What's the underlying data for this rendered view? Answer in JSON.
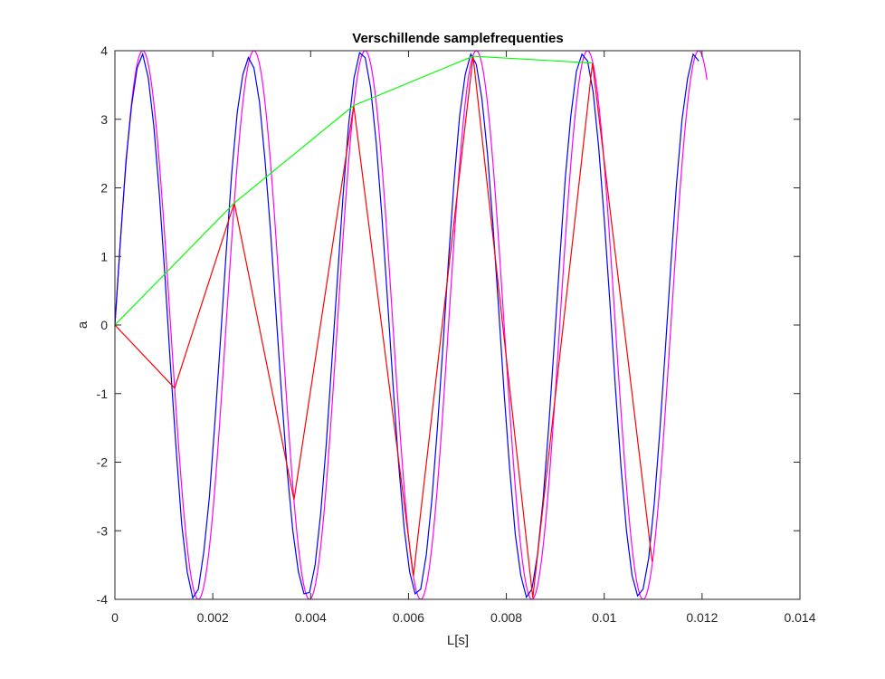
{
  "chart_data": {
    "type": "line",
    "title": "Verschillende samplefrequenties",
    "xlabel": "L[s]",
    "ylabel": "a",
    "xlim": [
      0,
      0.014
    ],
    "ylim": [
      -4,
      4
    ],
    "xticks": [
      0,
      0.002,
      0.004,
      0.006,
      0.008,
      0.01,
      0.012,
      0.014
    ],
    "xtick_labels": [
      "0",
      "0.002",
      "0.004",
      "0.006",
      "0.008",
      "0.01",
      "0.012",
      "0.014"
    ],
    "yticks": [
      -4,
      -3,
      -2,
      -1,
      0,
      1,
      2,
      3,
      4
    ],
    "ytick_labels": [
      "-4",
      "-3",
      "-2",
      "-1",
      "0",
      "1",
      "2",
      "3",
      "4"
    ],
    "grid": false,
    "box": true,
    "series": [
      {
        "color": "#ff00ff",
        "kind": "sine",
        "amplitude": 4,
        "frequency_hz": 440,
        "x_range": [
          0,
          0.0121
        ]
      },
      {
        "color": "#0000ff",
        "kind": "sampled",
        "x": [
          0,
          0.000114,
          0.000227,
          0.000341,
          0.000455,
          0.000568,
          0.000682,
          0.000795,
          0.000909,
          0.001023,
          0.001136,
          0.00125,
          0.001364,
          0.001477,
          0.001591,
          0.001705,
          0.001818,
          0.001932,
          0.002045,
          0.002159,
          0.002273,
          0.002386,
          0.0025,
          0.002614,
          0.002727,
          0.002841,
          0.002955,
          0.003068,
          0.003182,
          0.003295,
          0.003409,
          0.003523,
          0.003636,
          0.00375,
          0.003864,
          0.003977,
          0.004091,
          0.004205,
          0.004318,
          0.004432,
          0.004545,
          0.004659,
          0.004773,
          0.004886,
          0.005,
          0.005114,
          0.005227,
          0.005341,
          0.005455,
          0.005568,
          0.005682,
          0.005795,
          0.005909,
          0.006023,
          0.006136,
          0.00625,
          0.006364,
          0.006477,
          0.006591,
          0.006705,
          0.006818,
          0.006932,
          0.007045,
          0.007159,
          0.007273,
          0.007386,
          0.0075,
          0.007614,
          0.007727,
          0.007841,
          0.007955,
          0.008068,
          0.008182,
          0.008295,
          0.008409,
          0.008523,
          0.008636,
          0.00875,
          0.008864,
          0.008977,
          0.009091,
          0.009205,
          0.009318,
          0.009432,
          0.009545,
          0.009659,
          0.009773,
          0.009886,
          0.01,
          0.010114,
          0.010227,
          0.010341,
          0.010455,
          0.010568,
          0.010682,
          0.010795,
          0.010909,
          0.011023,
          0.011136,
          0.01125,
          0.011364,
          0.011477,
          0.011591,
          0.011705,
          0.011818,
          0.011932
        ],
        "y": [
          0,
          1.25,
          2.4,
          3.2,
          3.75,
          3.95,
          3.6,
          2.9,
          1.9,
          0.7,
          -0.6,
          -1.8,
          -2.9,
          -3.6,
          -3.98,
          -3.85,
          -3.3,
          -2.5,
          -1.4,
          -0.2,
          1.05,
          2.2,
          3.1,
          3.65,
          3.9,
          3.75,
          3.25,
          2.4,
          1.35,
          0.15,
          -1.05,
          -2.15,
          -3.0,
          -3.6,
          -3.92,
          -3.9,
          -3.5,
          -2.75,
          -1.75,
          -0.55,
          0.65,
          1.85,
          2.9,
          3.6,
          3.97,
          3.9,
          3.45,
          2.65,
          1.6,
          0.4,
          -0.85,
          -2.0,
          -2.95,
          -3.6,
          -3.92,
          -3.85,
          -3.35,
          -2.55,
          -1.5,
          -0.3,
          0.95,
          2.1,
          3.05,
          3.65,
          3.95,
          3.8,
          3.3,
          2.5,
          1.45,
          0.25,
          -1.0,
          -2.1,
          -3.05,
          -3.65,
          -3.97,
          -3.85,
          -3.35,
          -2.55,
          -1.5,
          -0.3,
          0.95,
          2.15,
          3.05,
          3.7,
          3.95,
          3.85,
          3.4,
          2.6,
          1.55,
          0.35,
          -0.9,
          -2.05,
          -3.0,
          -3.65,
          -3.95,
          -3.85,
          -3.4,
          -2.6,
          -1.55,
          -0.35,
          0.9,
          2.05,
          3.0,
          3.6,
          3.95,
          3.85
        ]
      },
      {
        "color": "#ff0000",
        "kind": "sampled",
        "x": [
          0,
          0.00122,
          0.00244,
          0.00366,
          0.00488,
          0.0061,
          0.00732,
          0.00854,
          0.00976,
          0.01098
        ],
        "y": [
          0,
          -0.92,
          1.78,
          -2.55,
          3.2,
          -3.66,
          3.92,
          -3.98,
          3.82,
          -3.45
        ]
      },
      {
        "color": "#00ff00",
        "kind": "sampled",
        "x": [
          0,
          0.00244,
          0.00488,
          0.00732,
          0.00976
        ],
        "y": [
          0,
          1.78,
          3.2,
          3.92,
          3.82
        ]
      }
    ]
  }
}
